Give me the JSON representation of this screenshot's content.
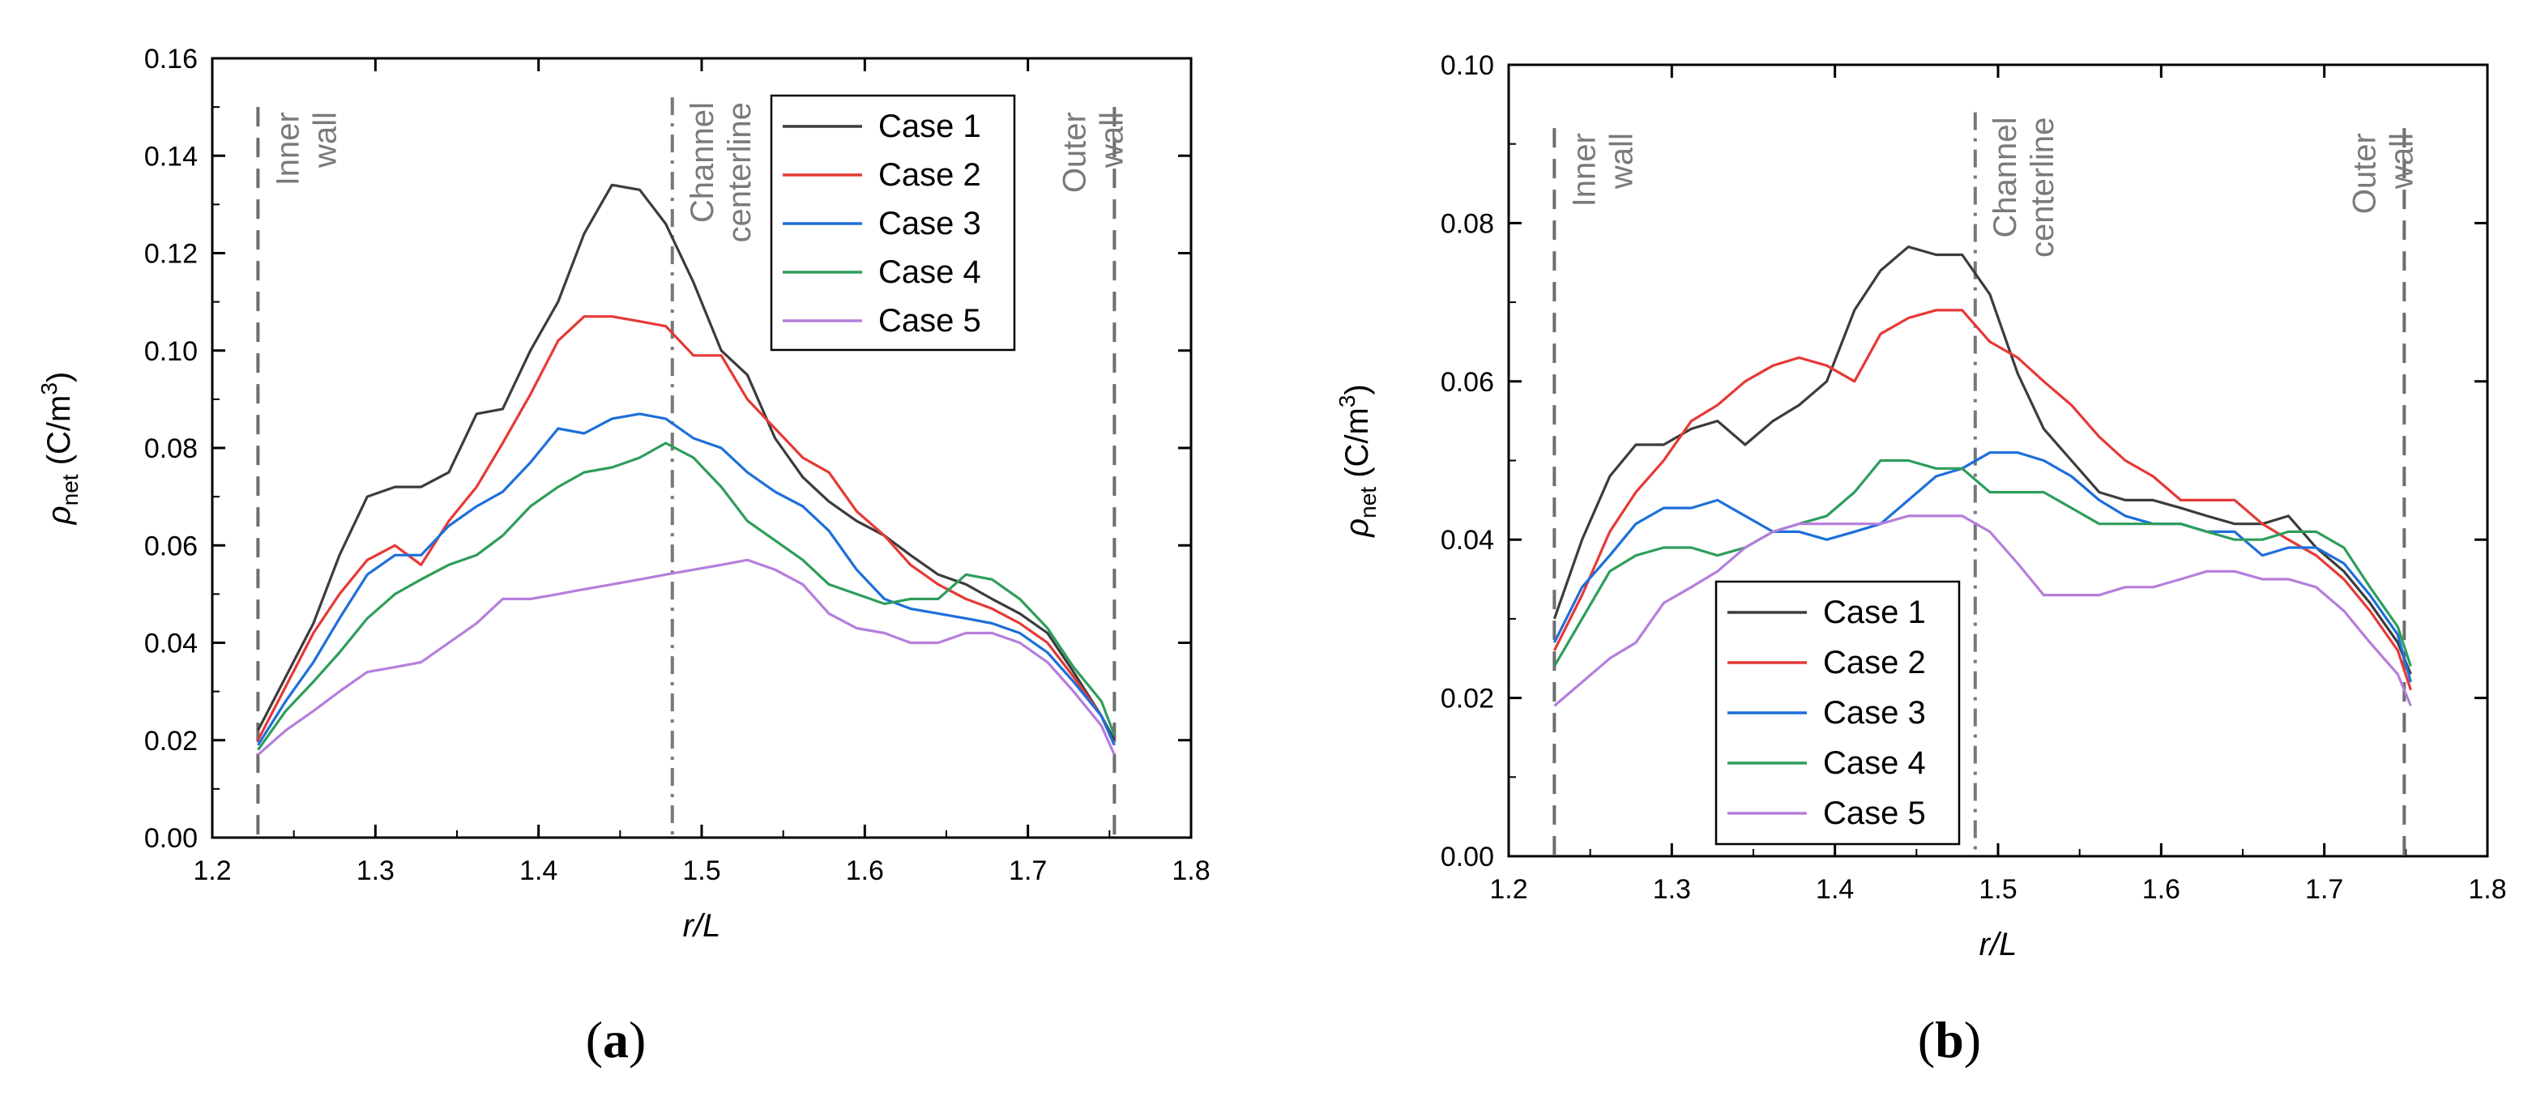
{
  "chart_data": [
    {
      "id": "a",
      "type": "line",
      "panel_label": "(a)",
      "xlabel": "r/L",
      "ylabel_main": "ρ",
      "ylabel_sub": "net",
      "ylabel_unit": " (C/m",
      "ylabel_sup": "3",
      "ylabel_close": ")",
      "xlim": [
        1.2,
        1.8
      ],
      "ylim": [
        0,
        0.16
      ],
      "xticks": [
        1.2,
        1.3,
        1.4,
        1.5,
        1.6,
        1.7,
        1.8
      ],
      "xtick_labels": [
        "1.2",
        "1.3",
        "1.4",
        "1.5",
        "1.6",
        "1.7",
        "1.8"
      ],
      "yticks": [
        0,
        0.02,
        0.04,
        0.06,
        0.08,
        0.1,
        0.12,
        0.14,
        0.16
      ],
      "ytick_labels": [
        "0.00",
        "0.02",
        "0.04",
        "0.06",
        "0.08",
        "0.10",
        "0.12",
        "0.14",
        "0.16"
      ],
      "legend_position": "top-right",
      "reference_lines": [
        {
          "x": 1.228,
          "style": "dash",
          "label": "Inner wall",
          "label_side": "right",
          "y_top": 0.15
        },
        {
          "x": 1.482,
          "style": "dashdot",
          "label": "Channel centerline",
          "label_side": "right",
          "y_top": 0.152
        },
        {
          "x": 1.753,
          "style": "dash",
          "label": "Outer wall",
          "label_side": "left",
          "y_top": 0.15
        }
      ],
      "x": [
        1.228,
        1.245,
        1.262,
        1.278,
        1.295,
        1.312,
        1.328,
        1.345,
        1.362,
        1.378,
        1.395,
        1.412,
        1.428,
        1.445,
        1.462,
        1.478,
        1.495,
        1.512,
        1.528,
        1.545,
        1.562,
        1.578,
        1.595,
        1.612,
        1.628,
        1.645,
        1.662,
        1.678,
        1.695,
        1.712,
        1.728,
        1.745,
        1.753
      ],
      "series": [
        {
          "name": "Case 1",
          "color": "#3c3c3c",
          "values": [
            0.022,
            0.033,
            0.044,
            0.058,
            0.07,
            0.072,
            0.072,
            0.075,
            0.087,
            0.088,
            0.1,
            0.11,
            0.124,
            0.134,
            0.133,
            0.126,
            0.114,
            0.1,
            0.095,
            0.082,
            0.074,
            0.069,
            0.065,
            0.062,
            0.058,
            0.054,
            0.052,
            0.049,
            0.046,
            0.042,
            0.034,
            0.025,
            0.02
          ]
        },
        {
          "name": "Case 2",
          "color": "#e53935",
          "values": [
            0.02,
            0.031,
            0.042,
            0.05,
            0.057,
            0.06,
            0.056,
            0.065,
            0.072,
            0.081,
            0.091,
            0.102,
            0.107,
            0.107,
            0.106,
            0.105,
            0.099,
            0.099,
            0.09,
            0.084,
            0.078,
            0.075,
            0.067,
            0.062,
            0.056,
            0.052,
            0.049,
            0.047,
            0.044,
            0.04,
            0.033,
            0.025,
            0.019
          ]
        },
        {
          "name": "Case 3",
          "color": "#1e6fd9",
          "values": [
            0.019,
            0.028,
            0.036,
            0.045,
            0.054,
            0.058,
            0.058,
            0.064,
            0.068,
            0.071,
            0.077,
            0.084,
            0.083,
            0.086,
            0.087,
            0.086,
            0.082,
            0.08,
            0.075,
            0.071,
            0.068,
            0.063,
            0.055,
            0.049,
            0.047,
            0.046,
            0.045,
            0.044,
            0.042,
            0.038,
            0.032,
            0.025,
            0.019
          ]
        },
        {
          "name": "Case 4",
          "color": "#2e9d5b",
          "values": [
            0.018,
            0.026,
            0.032,
            0.038,
            0.045,
            0.05,
            0.053,
            0.056,
            0.058,
            0.062,
            0.068,
            0.072,
            0.075,
            0.076,
            0.078,
            0.081,
            0.078,
            0.072,
            0.065,
            0.061,
            0.057,
            0.052,
            0.05,
            0.048,
            0.049,
            0.049,
            0.054,
            0.053,
            0.049,
            0.043,
            0.035,
            0.028,
            0.021
          ]
        },
        {
          "name": "Case 5",
          "color": "#b57edc",
          "values": [
            0.017,
            0.022,
            0.026,
            0.03,
            0.034,
            0.035,
            0.036,
            0.04,
            0.044,
            0.049,
            0.049,
            0.05,
            0.051,
            0.052,
            0.053,
            0.054,
            0.055,
            0.056,
            0.057,
            0.055,
            0.052,
            0.046,
            0.043,
            0.042,
            0.04,
            0.04,
            0.042,
            0.042,
            0.04,
            0.036,
            0.03,
            0.023,
            0.017
          ]
        }
      ]
    },
    {
      "id": "b",
      "type": "line",
      "panel_label": "(b)",
      "xlabel": "r/L",
      "ylabel_main": "ρ",
      "ylabel_sub": "net",
      "ylabel_unit": " (C/m",
      "ylabel_sup": "3",
      "ylabel_close": ")",
      "xlim": [
        1.2,
        1.8
      ],
      "ylim": [
        0,
        0.1
      ],
      "xticks": [
        1.2,
        1.3,
        1.4,
        1.5,
        1.6,
        1.7,
        1.8
      ],
      "xtick_labels": [
        "1.2",
        "1.3",
        "1.4",
        "1.5",
        "1.6",
        "1.7",
        "1.8"
      ],
      "yticks": [
        0,
        0.02,
        0.04,
        0.06,
        0.08,
        0.1
      ],
      "ytick_labels": [
        "0.00",
        "0.02",
        "0.04",
        "0.06",
        "0.08",
        "0.10"
      ],
      "legend_position": "bottom-left",
      "reference_lines": [
        {
          "x": 1.228,
          "style": "dash",
          "label": "Inner wall",
          "label_side": "right",
          "y_top": 0.092
        },
        {
          "x": 1.486,
          "style": "dashdot",
          "label": "Channel centerline",
          "label_side": "right",
          "y_top": 0.094
        },
        {
          "x": 1.749,
          "style": "dash",
          "label": "Outer wall",
          "label_side": "left",
          "y_top": 0.092
        }
      ],
      "x": [
        1.228,
        1.245,
        1.262,
        1.278,
        1.295,
        1.312,
        1.328,
        1.345,
        1.362,
        1.378,
        1.395,
        1.412,
        1.428,
        1.445,
        1.462,
        1.478,
        1.495,
        1.512,
        1.528,
        1.545,
        1.562,
        1.578,
        1.595,
        1.612,
        1.628,
        1.645,
        1.662,
        1.678,
        1.695,
        1.712,
        1.728,
        1.745,
        1.753
      ],
      "series": [
        {
          "name": "Case 1",
          "color": "#3c3c3c",
          "values": [
            0.03,
            0.04,
            0.048,
            0.052,
            0.052,
            0.054,
            0.055,
            0.052,
            0.055,
            0.057,
            0.06,
            0.069,
            0.074,
            0.077,
            0.076,
            0.076,
            0.071,
            0.061,
            0.054,
            0.05,
            0.046,
            0.045,
            0.045,
            0.044,
            0.043,
            0.042,
            0.042,
            0.043,
            0.039,
            0.036,
            0.032,
            0.027,
            0.023
          ]
        },
        {
          "name": "Case 2",
          "color": "#e53935",
          "values": [
            0.026,
            0.033,
            0.041,
            0.046,
            0.05,
            0.055,
            0.057,
            0.06,
            0.062,
            0.063,
            0.062,
            0.06,
            0.066,
            0.068,
            0.069,
            0.069,
            0.065,
            0.063,
            0.06,
            0.057,
            0.053,
            0.05,
            0.048,
            0.045,
            0.045,
            0.045,
            0.042,
            0.04,
            0.038,
            0.035,
            0.031,
            0.026,
            0.021
          ]
        },
        {
          "name": "Case 3",
          "color": "#1e6fd9",
          "values": [
            0.027,
            0.034,
            0.038,
            0.042,
            0.044,
            0.044,
            0.045,
            0.043,
            0.041,
            0.041,
            0.04,
            0.041,
            0.042,
            0.045,
            0.048,
            0.049,
            0.051,
            0.051,
            0.05,
            0.048,
            0.045,
            0.043,
            0.042,
            0.042,
            0.041,
            0.041,
            0.038,
            0.039,
            0.039,
            0.037,
            0.033,
            0.028,
            0.022
          ]
        },
        {
          "name": "Case 4",
          "color": "#2e9d5b",
          "values": [
            0.024,
            0.03,
            0.036,
            0.038,
            0.039,
            0.039,
            0.038,
            0.039,
            0.041,
            0.042,
            0.043,
            0.046,
            0.05,
            0.05,
            0.049,
            0.049,
            0.046,
            0.046,
            0.046,
            0.044,
            0.042,
            0.042,
            0.042,
            0.042,
            0.041,
            0.04,
            0.04,
            0.041,
            0.041,
            0.039,
            0.034,
            0.029,
            0.024
          ]
        },
        {
          "name": "Case 5",
          "color": "#b57edc",
          "values": [
            0.019,
            0.022,
            0.025,
            0.027,
            0.032,
            0.034,
            0.036,
            0.039,
            0.041,
            0.042,
            0.042,
            0.042,
            0.042,
            0.043,
            0.043,
            0.043,
            0.041,
            0.037,
            0.033,
            0.033,
            0.033,
            0.034,
            0.034,
            0.035,
            0.036,
            0.036,
            0.035,
            0.035,
            0.034,
            0.031,
            0.027,
            0.023,
            0.019
          ]
        }
      ]
    }
  ]
}
